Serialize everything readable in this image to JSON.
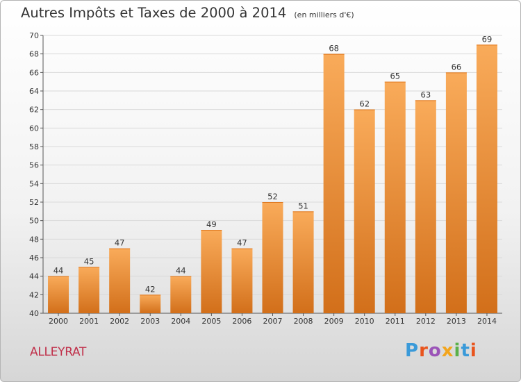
{
  "title": "Autres Impôts et Taxes de 2000 à 2014",
  "subtitle": "(en milliers d'€)",
  "commune": "ALLEYRAT",
  "brand": "Proxiti",
  "colors": {
    "bar_light": "#f9ab5a",
    "bar_dark": "#d26f1a",
    "grid": "#d9d9d9",
    "axis": "#555555",
    "commune": "#c0304a",
    "brand_letters": [
      "#3a9ad9",
      "#e9541d",
      "#9b54b8",
      "#f2a51d",
      "#5ab04a",
      "#3a9ad9",
      "#e9541d"
    ]
  },
  "chart_data": {
    "type": "bar",
    "categories": [
      "2000",
      "2001",
      "2002",
      "2003",
      "2004",
      "2005",
      "2006",
      "2007",
      "2008",
      "2009",
      "2010",
      "2011",
      "2012",
      "2013",
      "2014"
    ],
    "values": [
      44,
      45,
      47,
      42,
      44,
      49,
      47,
      52,
      51,
      68,
      62,
      65,
      63,
      66,
      69
    ],
    "ylim": [
      40,
      70
    ],
    "yticks": [
      40,
      42,
      44,
      46,
      48,
      50,
      52,
      54,
      56,
      58,
      60,
      62,
      64,
      66,
      68,
      70
    ],
    "grid": true,
    "data_labels": true
  }
}
